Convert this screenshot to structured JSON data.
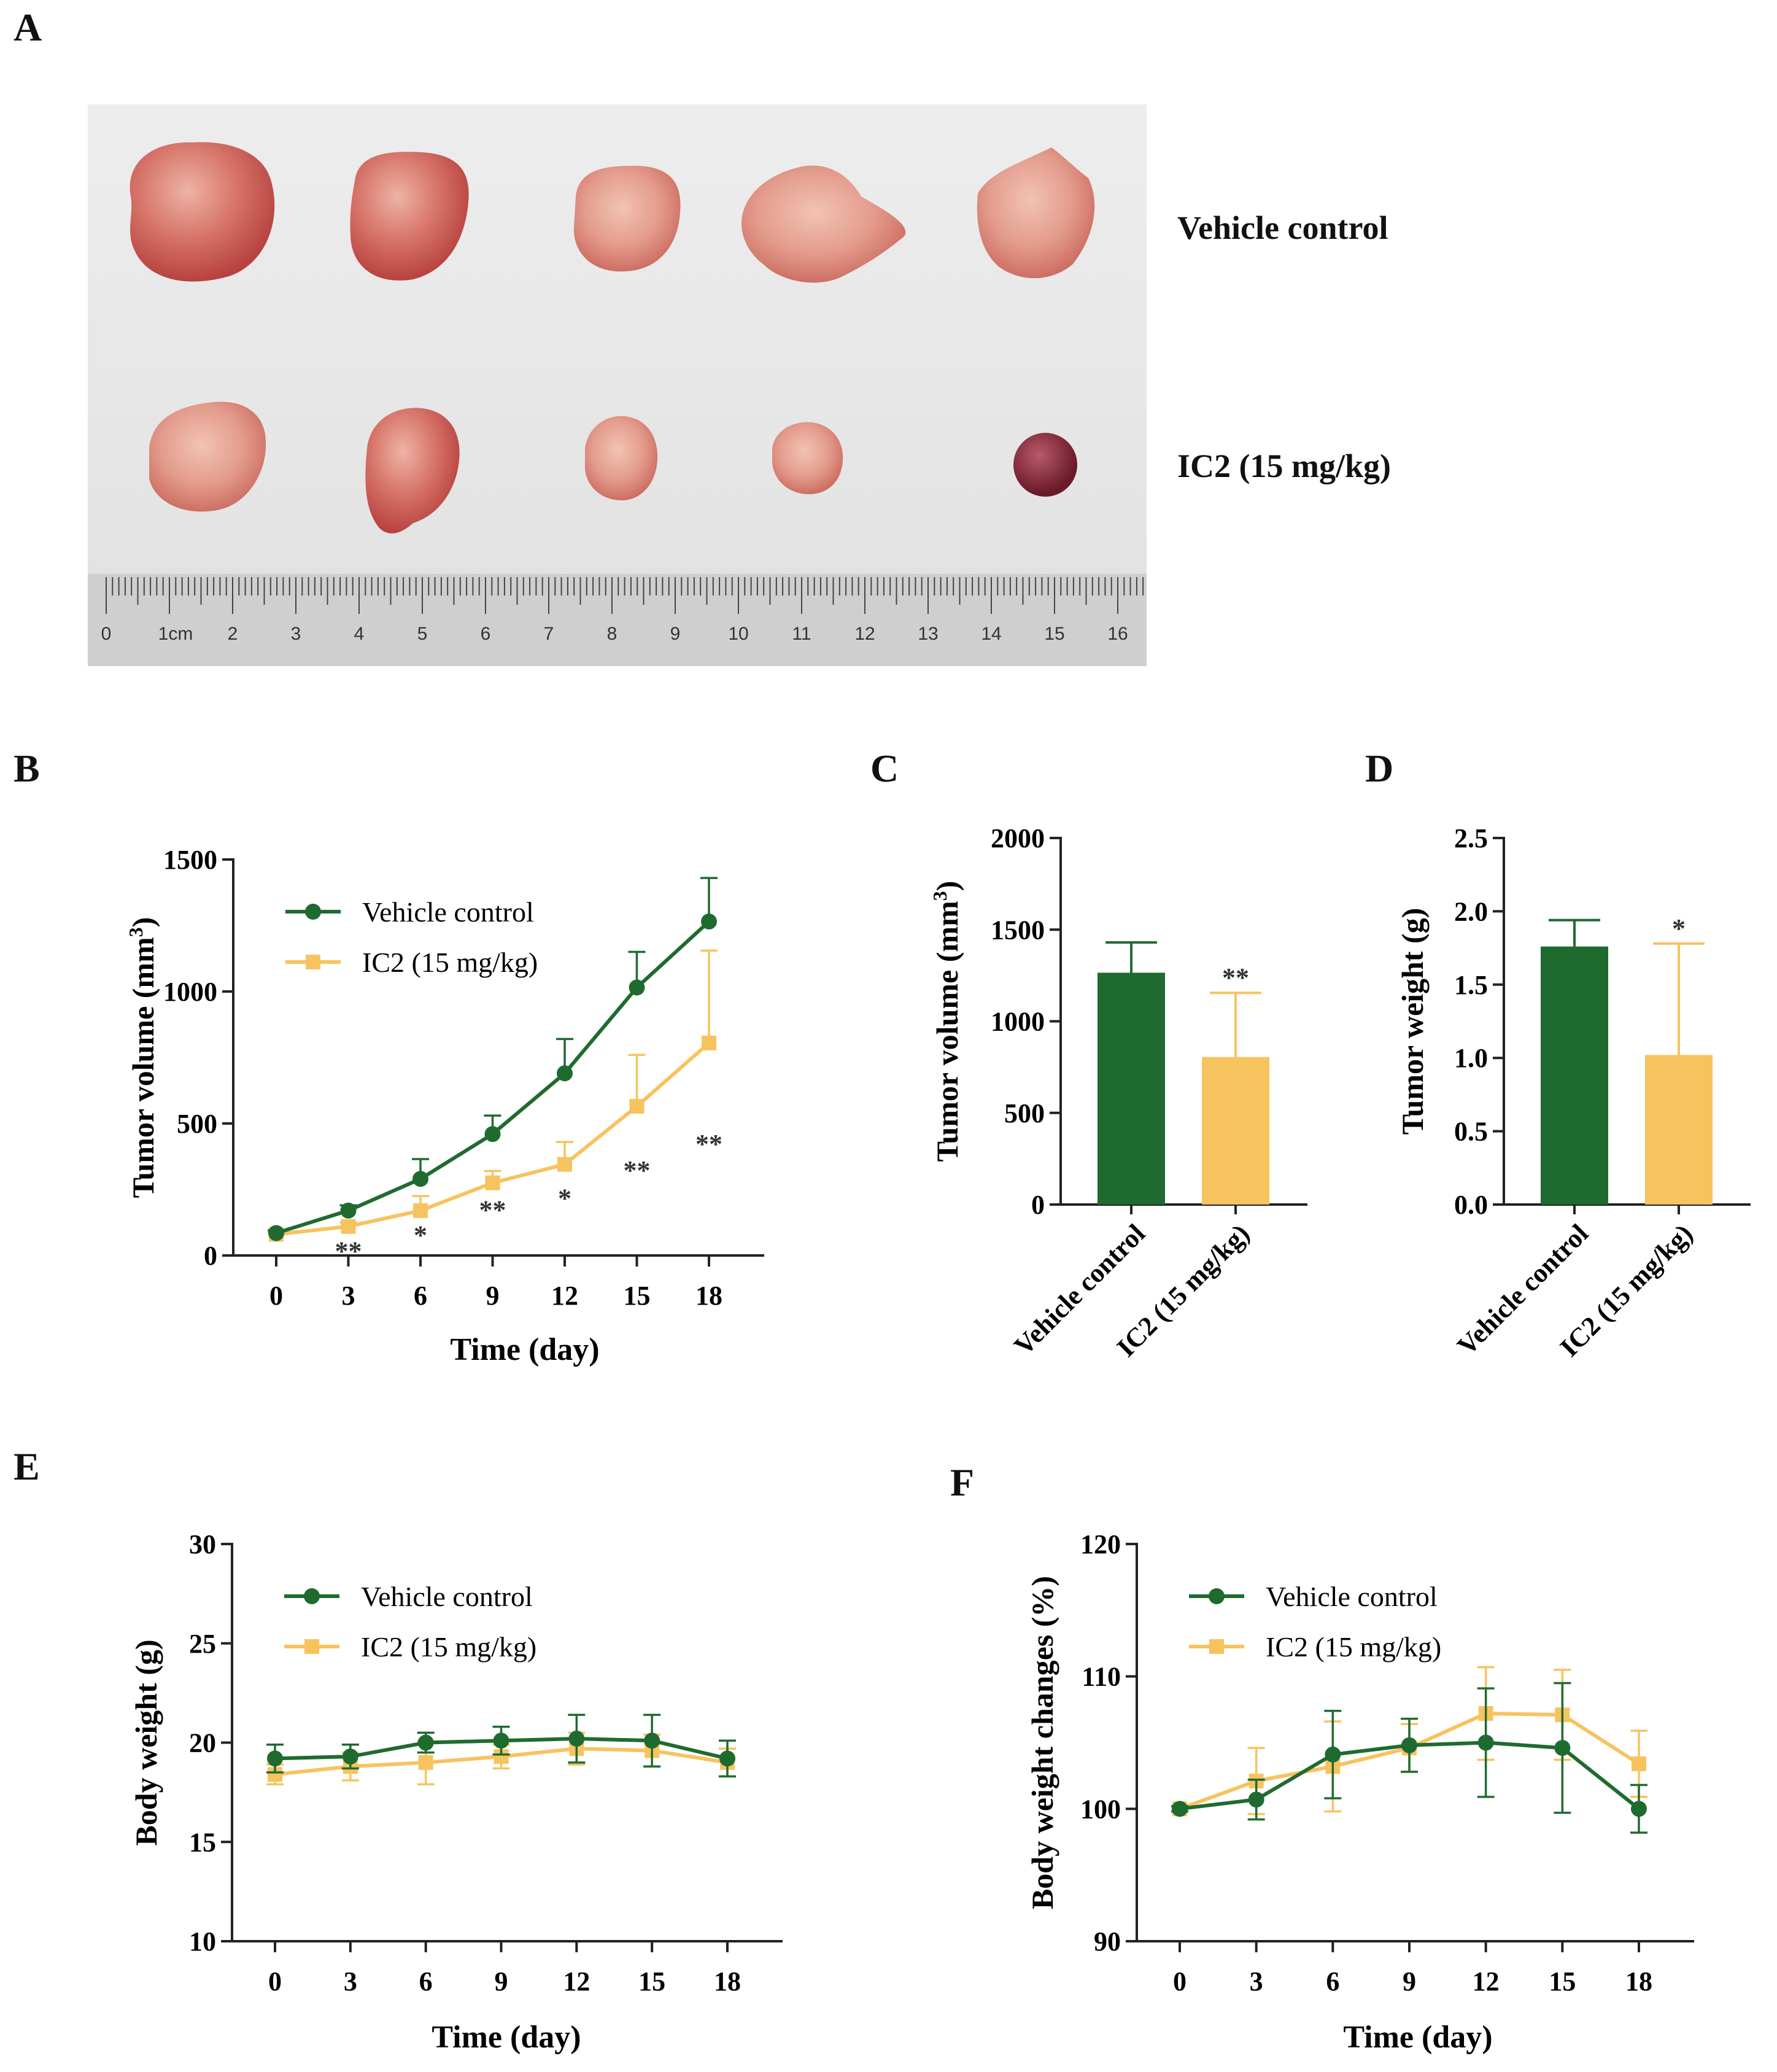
{
  "panels": {
    "A": "A",
    "B": "B",
    "C": "C",
    "D": "D",
    "E": "E",
    "F": "F"
  },
  "photo": {
    "group_labels": [
      "Vehicle control",
      "IC2 (15 mg/kg)"
    ],
    "ruler_labels": [
      "0",
      "1cm",
      "2",
      "3",
      "4",
      "5",
      "6",
      "7",
      "8",
      "9",
      "10",
      "11",
      "12",
      "13",
      "14",
      "15",
      "16"
    ]
  },
  "colors": {
    "vehicle": "#1f6b2f",
    "ic2": "#f7c35f",
    "axis": "#222222"
  },
  "chart_data": [
    {
      "id": "B",
      "type": "line",
      "xlabel": "Time (day)",
      "ylabel": "Tumor volume (mm3)",
      "ylabel_base": "Tumor volume (mm",
      "ylabel_sup": "3",
      "ylabel_close": ")",
      "x": [
        0,
        3,
        6,
        9,
        12,
        15,
        18
      ],
      "xticks": [
        "0",
        "3",
        "6",
        "9",
        "12",
        "15",
        "18"
      ],
      "ylim": [
        0,
        1500
      ],
      "yticks": [
        0,
        500,
        1000,
        1500
      ],
      "ytick_labels": [
        "0",
        "500",
        "1000",
        "1500"
      ],
      "legend_position": "top-left",
      "series": [
        {
          "name": "Vehicle control",
          "values": [
            85,
            170,
            290,
            460,
            690,
            1015,
            1265
          ],
          "err": [
            10,
            20,
            75,
            70,
            130,
            135,
            165
          ],
          "marker": "circle"
        },
        {
          "name": "IC2 (15 mg/kg)",
          "values": [
            80,
            110,
            170,
            275,
            345,
            565,
            805
          ],
          "err": [
            10,
            15,
            55,
            45,
            85,
            195,
            350
          ],
          "marker": "square"
        }
      ],
      "annotations": [
        {
          "x": 3,
          "text": "**",
          "y": 25
        },
        {
          "x": 6,
          "text": "*",
          "y": 85
        },
        {
          "x": 9,
          "text": "**",
          "y": 180
        },
        {
          "x": 12,
          "text": "*",
          "y": 225
        },
        {
          "x": 15,
          "text": "**",
          "y": 330
        },
        {
          "x": 18,
          "text": "**",
          "y": 430
        }
      ]
    },
    {
      "id": "C",
      "type": "bar",
      "ylabel": "Tumor volume (mm3)",
      "ylabel_base": "Tumor volume (mm",
      "ylabel_sup": "3",
      "ylabel_close": ")",
      "categories": [
        "Vehicle control",
        "IC2 (15 mg/kg)"
      ],
      "values": [
        1265,
        805
      ],
      "err": [
        165,
        350
      ],
      "ylim": [
        0,
        2000
      ],
      "yticks": [
        0,
        500,
        1000,
        1500,
        2000
      ],
      "ytick_labels": [
        "0",
        "500",
        "1000",
        "1500",
        "2000"
      ],
      "annotations": [
        {
          "category": 1,
          "text": "**"
        }
      ]
    },
    {
      "id": "D",
      "type": "bar",
      "ylabel": "Tumor weight (g)",
      "categories": [
        "Vehicle control",
        "IC2 (15 mg/kg)"
      ],
      "values": [
        1.76,
        1.02
      ],
      "err": [
        0.18,
        0.76
      ],
      "ylim": [
        0,
        2.5
      ],
      "yticks": [
        0,
        0.5,
        1,
        1.5,
        2,
        2.5
      ],
      "ytick_labels": [
        "0.0",
        "0.5",
        "1.0",
        "1.5",
        "2.0",
        "2.5"
      ],
      "annotations": [
        {
          "category": 1,
          "text": "*"
        }
      ]
    },
    {
      "id": "E",
      "type": "line",
      "xlabel": "Time (day)",
      "ylabel": "Body weight (g)",
      "x": [
        0,
        3,
        6,
        9,
        12,
        15,
        18
      ],
      "xticks": [
        "0",
        "3",
        "6",
        "9",
        "12",
        "15",
        "18"
      ],
      "ylim": [
        10,
        30
      ],
      "yticks": [
        10,
        15,
        20,
        25,
        30
      ],
      "ytick_labels": [
        "10",
        "15",
        "20",
        "25",
        "30"
      ],
      "legend_position": "top-left",
      "series": [
        {
          "name": "Vehicle control",
          "values": [
            19.2,
            19.3,
            20.0,
            20.1,
            20.2,
            20.1,
            19.2
          ],
          "err": [
            0.7,
            0.6,
            0.5,
            0.7,
            1.2,
            1.3,
            0.9
          ],
          "marker": "circle"
        },
        {
          "name": "IC2 (15 mg/kg)",
          "values": [
            18.4,
            18.8,
            19.0,
            19.3,
            19.7,
            19.6,
            19.0
          ],
          "err": [
            0.5,
            0.7,
            1.1,
            0.6,
            0.8,
            0.8,
            0.7
          ],
          "marker": "square"
        }
      ]
    },
    {
      "id": "F",
      "type": "line",
      "xlabel": "Time (day)",
      "ylabel": "Body weight changes (%)",
      "x": [
        0,
        3,
        6,
        9,
        12,
        15,
        18
      ],
      "xticks": [
        "0",
        "3",
        "6",
        "9",
        "12",
        "15",
        "18"
      ],
      "ylim": [
        90,
        120
      ],
      "yticks": [
        90,
        100,
        110,
        120
      ],
      "ytick_labels": [
        "90",
        "100",
        "110",
        "120"
      ],
      "legend_position": "top-left",
      "series": [
        {
          "name": "Vehicle control",
          "values": [
            100,
            100.7,
            104.1,
            104.8,
            105.0,
            104.6,
            100.0
          ],
          "err": [
            0.2,
            1.5,
            3.3,
            2.0,
            4.1,
            4.9,
            1.8
          ],
          "marker": "circle"
        },
        {
          "name": "IC2 (15 mg/kg)",
          "values": [
            100,
            102.1,
            103.2,
            104.6,
            107.2,
            107.1,
            103.4
          ],
          "err": [
            0.2,
            2.5,
            3.4,
            1.8,
            3.5,
            3.4,
            2.5
          ],
          "marker": "square"
        }
      ]
    }
  ]
}
